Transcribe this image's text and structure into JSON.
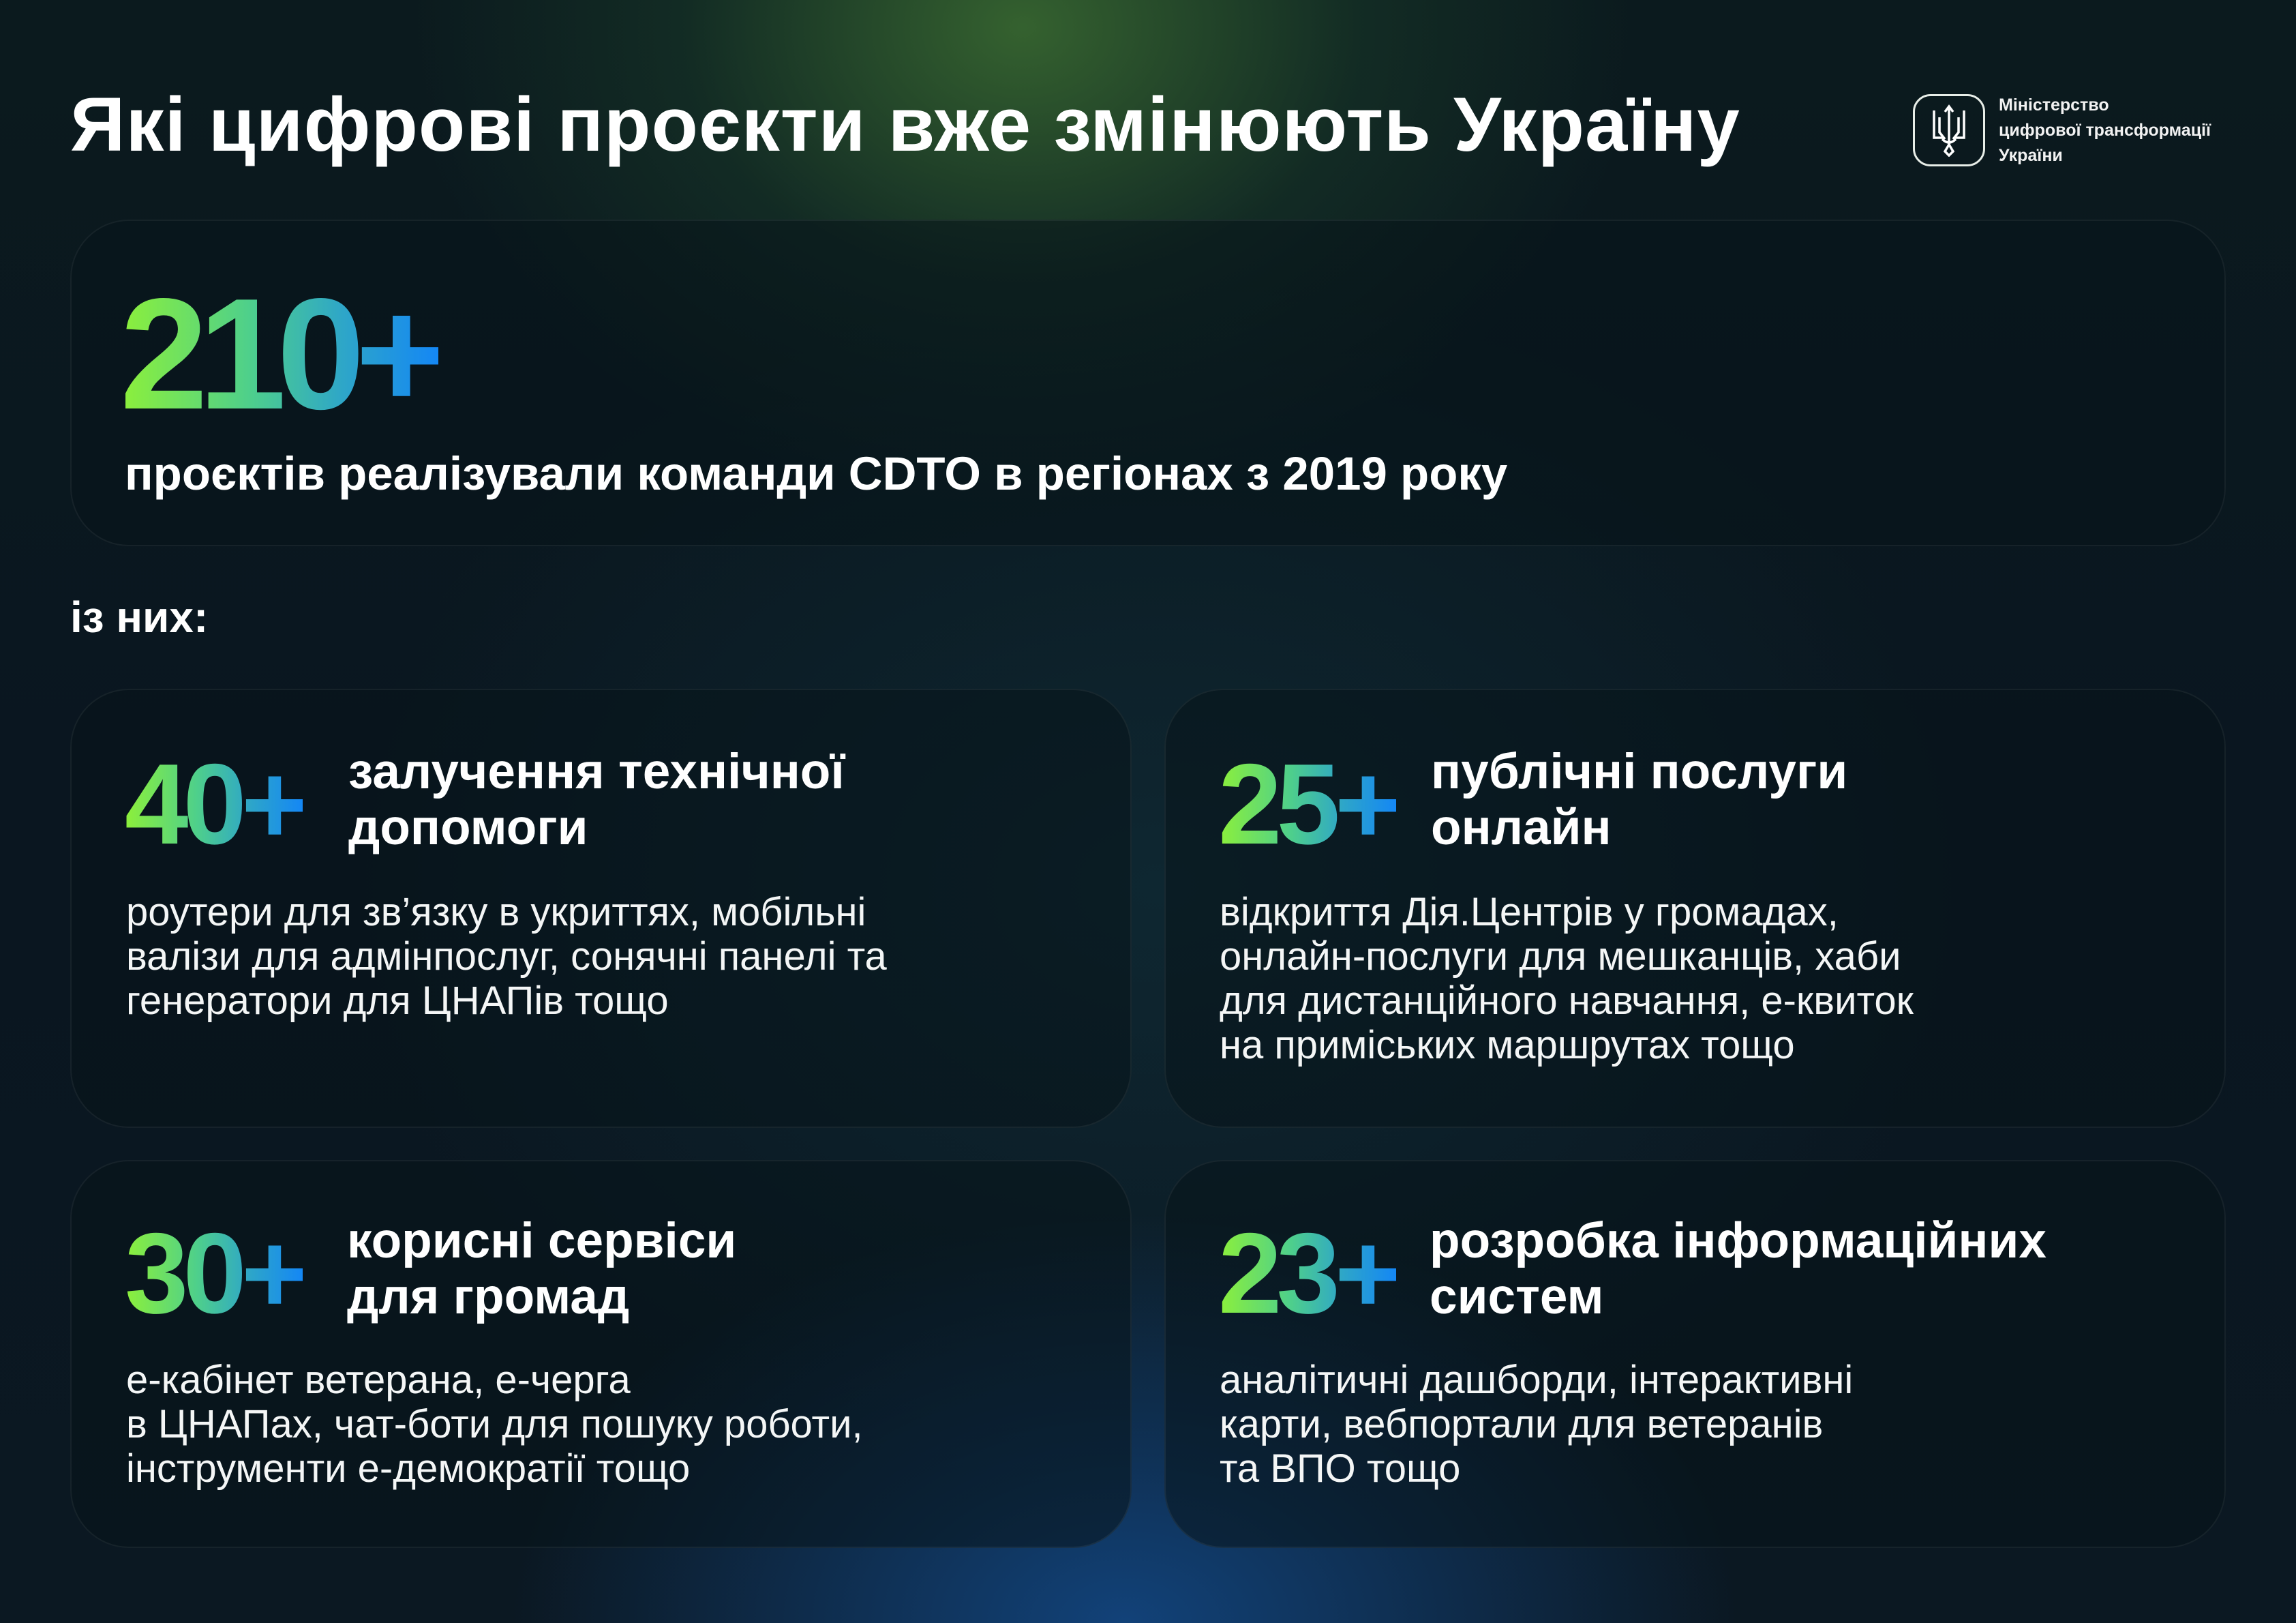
{
  "header": {
    "title": "Які цифрові проєкти вже змінюють Україну",
    "logo": {
      "icon": "trident-icon",
      "lines": [
        "Міністерство",
        "цифрової трансформації",
        "України"
      ]
    }
  },
  "summary": {
    "number": "210+",
    "text": "проєктів реалізували команди CDTO в регіонах з 2019 року"
  },
  "subheading": "із них:",
  "cards": [
    {
      "number": "40+",
      "title": [
        "залучення технічної",
        "допомоги"
      ],
      "description": [
        "роутери для зв’язку в укриттях, мобільні",
        "валізи для адмінпослуг, сонячні панелі та",
        "генератори для ЦНАПів тощо"
      ]
    },
    {
      "number": "25+",
      "title": [
        "публічні послуги",
        "онлайн"
      ],
      "description": [
        "відкриття Дія.Центрів у громадах,",
        "онлайн-послуги для мешканців, хаби",
        "для дистанційного навчання, е-квиток",
        "на приміських маршрутах тощо"
      ]
    },
    {
      "number": "30+",
      "title": [
        "корисні сервіси",
        "для громад"
      ],
      "description": [
        "е-кабінет ветерана, е-черга",
        "в ЦНАПах, чат-боти для пошуку роботи,",
        "інструменти е-демократії тощо"
      ]
    },
    {
      "number": "23+",
      "title": [
        "розробка інформаційних",
        "систем"
      ],
      "description": [
        "аналітичні дашборди, інтерактивні",
        "карти, вебпортали для ветеранів",
        "та ВПО тощо"
      ]
    }
  ],
  "colors": {
    "gradient_start": "#8df03a",
    "gradient_end": "#1487f5",
    "background": "#0a1620"
  }
}
